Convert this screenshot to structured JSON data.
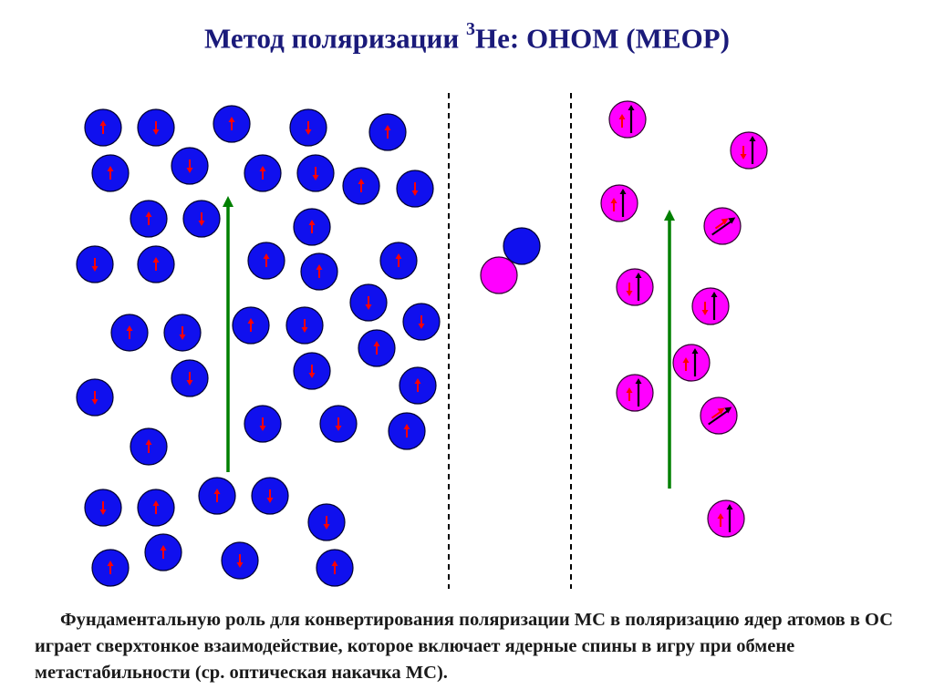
{
  "title": {
    "prefix": "Метод поляризации ",
    "superscript": "3",
    "suffix": "He: OHOM (MEOP)"
  },
  "caption": "Фундаментальную роль для конвертирования поляризации МС в поляризацию ядер атомов в ОС играет сверхтонкое взаимодействие, которое включает ядерные спины в игру при обмене метастабильности (ср. оптическая накачка МС).",
  "colors": {
    "ground_atom": "#1010ee",
    "metastable_atom": "#ff00ff",
    "electron_spin_arrow": "#ff0000",
    "nuclear_spin_arrow": "#000000",
    "polarization_arrow": "#008000",
    "divider": "#000000"
  },
  "ground_state_atoms": [
    {
      "spin": "up"
    },
    {
      "spin": "down"
    },
    {
      "spin": "up"
    },
    {
      "spin": "down"
    },
    {
      "spin": "up"
    },
    {
      "spin": "up"
    },
    {
      "spin": "down"
    },
    {
      "spin": "up"
    },
    {
      "spin": "down"
    },
    {
      "spin": "up"
    },
    {
      "spin": "down"
    },
    {
      "spin": "up"
    },
    {
      "spin": "down"
    },
    {
      "spin": "up"
    },
    {
      "spin": "down"
    },
    {
      "spin": "up"
    },
    {
      "spin": "up"
    },
    {
      "spin": "up"
    },
    {
      "spin": "up"
    },
    {
      "spin": "down"
    },
    {
      "spin": "up"
    },
    {
      "spin": "down"
    },
    {
      "spin": "up"
    },
    {
      "spin": "down"
    },
    {
      "spin": "down"
    },
    {
      "spin": "up"
    },
    {
      "spin": "down"
    },
    {
      "spin": "down"
    },
    {
      "spin": "up"
    },
    {
      "spin": "down"
    },
    {
      "spin": "down"
    },
    {
      "spin": "down"
    },
    {
      "spin": "up"
    },
    {
      "spin": "up"
    },
    {
      "spin": "down"
    },
    {
      "spin": "up"
    },
    {
      "spin": "up"
    },
    {
      "spin": "down"
    },
    {
      "spin": "down"
    },
    {
      "spin": "up"
    },
    {
      "spin": "up"
    },
    {
      "spin": "down"
    },
    {
      "spin": "up"
    },
    {
      "spin": "up"
    },
    {
      "spin": "up"
    }
  ],
  "metastable_atoms": [
    {
      "electron": "up",
      "nucleus": "up"
    },
    {
      "electron": "down",
      "nucleus": "up"
    },
    {
      "electron": "up",
      "nucleus": "up"
    },
    {
      "electron": "tilted",
      "nucleus": "tilted"
    },
    {
      "electron": "down",
      "nucleus": "up"
    },
    {
      "electron": "down",
      "nucleus": "up"
    },
    {
      "electron": "up",
      "nucleus": "up"
    },
    {
      "electron": "up",
      "nucleus": "up"
    },
    {
      "electron": "tilted",
      "nucleus": "tilted"
    },
    {
      "electron": "up",
      "nucleus": "up"
    }
  ],
  "exchange_pair": [
    "ground_atom",
    "metastable_atom"
  ]
}
